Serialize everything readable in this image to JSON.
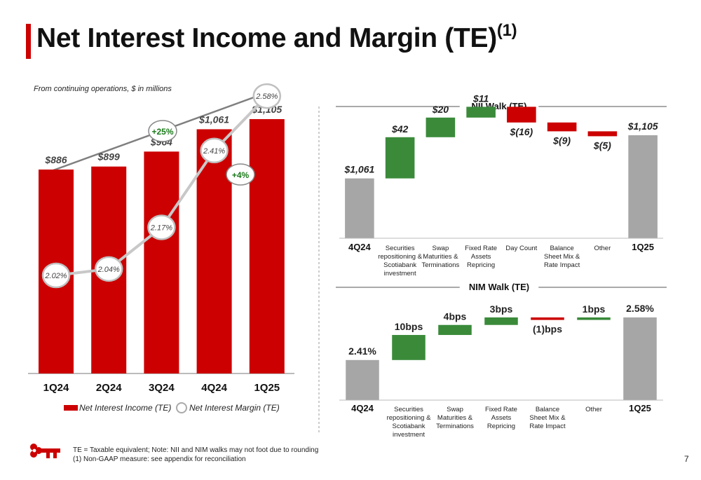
{
  "header": {
    "title": "Net Interest Income and Margin (TE)",
    "title_sup": "(1)"
  },
  "left_chart": {
    "subtitle": "From continuing operations, $ in millions"
  },
  "chart_data": [
    {
      "type": "bar",
      "categories": [
        "1Q24",
        "2Q24",
        "3Q24",
        "4Q24",
        "1Q25"
      ],
      "value_labels": [
        "$886",
        "$899",
        "$964",
        "$1,061",
        "$1,105"
      ],
      "series": [
        {
          "name": "Net Interest Income (TE)",
          "type": "bar",
          "values": [
            886,
            899,
            964,
            1061,
            1105
          ],
          "color": "#cc0000"
        },
        {
          "name": "Net Interest Margin (TE)",
          "type": "line",
          "values": [
            2.02,
            2.04,
            2.17,
            2.41,
            2.58
          ],
          "labels": [
            "2.02%",
            "2.04%",
            "2.17%",
            "2.41%",
            "2.58%"
          ],
          "color": "#bfbfbf"
        }
      ],
      "annotations": [
        {
          "text": "+25%",
          "color": "#1a7a1a"
        },
        {
          "text": "+4%",
          "color": "#1a7a1a"
        }
      ],
      "ylim": [
        0,
        1250
      ],
      "legend": "bottom"
    },
    {
      "type": "waterfall",
      "title": "NII Walk (TE)",
      "categories": [
        "4Q24",
        "Securities repositioning & Scotiabank investment",
        "Swap Maturities & Terminations",
        "Fixed Rate Assets Repricing",
        "Day Count",
        "Balance Sheet Mix & Rate Impact",
        "Other",
        "1Q25"
      ],
      "category_lines": [
        [
          "4Q24"
        ],
        [
          "Securities",
          "repositioning &",
          "Scotiabank",
          "investment"
        ],
        [
          "Swap",
          "Maturities &",
          "Terminations"
        ],
        [
          "Fixed Rate",
          "Assets",
          "Repricing"
        ],
        [
          "Day Count"
        ],
        [
          "Balance",
          "Sheet Mix &",
          "Rate Impact"
        ],
        [
          "Other"
        ],
        [
          "1Q25"
        ]
      ],
      "kinds": [
        "total",
        "delta",
        "delta",
        "delta",
        "delta",
        "delta",
        "delta",
        "total"
      ],
      "values": [
        1061,
        42,
        20,
        11,
        -16,
        -9,
        -5,
        1105
      ],
      "labels": [
        "$1,061",
        "$42",
        "$20",
        "$11",
        "$(16)",
        "$(9)",
        "$(5)",
        "$1,105"
      ],
      "ylim": [
        0,
        1105
      ],
      "colors": {
        "total": "#a6a6a6",
        "up": "#3a8a3a",
        "down": "#cc0000"
      }
    },
    {
      "type": "waterfall",
      "title": "NIM Walk (TE)",
      "categories": [
        "4Q24",
        "Securities repositioning & Scotiabank investment",
        "Swap Maturities & Terminations",
        "Fixed Rate Assets Repricing",
        "Balance Sheet Mix & Rate Impact",
        "Other",
        "1Q25"
      ],
      "category_lines": [
        [
          "4Q24"
        ],
        [
          "Securities",
          "repositioning &",
          "Scotiabank",
          "investment"
        ],
        [
          "Swap",
          "Maturities &",
          "Terminations"
        ],
        [
          "Fixed Rate",
          "Assets",
          "Repricing"
        ],
        [
          "Balance",
          "Sheet Mix &",
          "Rate Impact"
        ],
        [
          "Other"
        ],
        [
          "1Q25"
        ]
      ],
      "kinds": [
        "total",
        "delta",
        "delta",
        "delta",
        "delta",
        "delta",
        "total"
      ],
      "values": [
        2.41,
        0.1,
        0.04,
        0.03,
        -0.01,
        0.01,
        2.58
      ],
      "labels": [
        "2.41%",
        "10bps",
        "4bps",
        "3bps",
        "(1)bps",
        "1bps",
        "2.58%"
      ],
      "ylim": [
        0,
        2.58
      ],
      "colors": {
        "total": "#a6a6a6",
        "up": "#3a8a3a",
        "down": "#cc0000"
      }
    }
  ],
  "footer": {
    "note1": "TE = Taxable equivalent; Note: NII and NIM walks may not foot due to rounding",
    "note2": "(1) Non-GAAP measure: see appendix for reconciliation",
    "page_number": "7",
    "logo_icon": "key-logo-icon"
  }
}
